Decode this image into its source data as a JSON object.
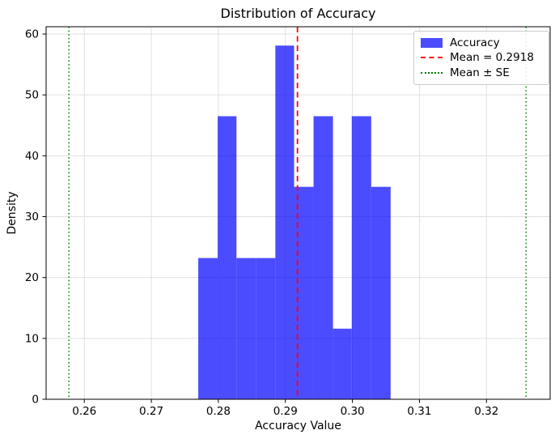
{
  "chart_data": {
    "type": "bar",
    "subtype": "histogram",
    "title": "Distribution of Accuracy",
    "xlabel": "Accuracy Value",
    "ylabel": "Density",
    "series_label": "Accuracy",
    "bin_edges": [
      0.277,
      0.2799,
      0.2827,
      0.2856,
      0.2885,
      0.2913,
      0.2942,
      0.2971,
      0.2999,
      0.3028,
      0.3057
    ],
    "densities": [
      23.2,
      46.5,
      23.2,
      23.2,
      58.1,
      34.9,
      46.5,
      11.6,
      46.5,
      34.9
    ],
    "mean": 0.2918,
    "mean_line": {
      "x": 0.2918,
      "color": "#ff0000",
      "style": "dashed",
      "label": "Mean = 0.2918"
    },
    "se_lines": {
      "x_values": [
        0.2577,
        0.3259
      ],
      "color": "#008000",
      "style": "dotted",
      "label": "Mean ± SE"
    },
    "bar_color": "#0000ff",
    "bar_alpha": 0.7,
    "xlim": [
      0.2543,
      0.3295
    ],
    "ylim": [
      0,
      61.2
    ],
    "xticks": [
      0.26,
      0.27,
      0.28,
      0.29,
      0.3,
      0.31,
      0.32
    ],
    "xtick_labels": [
      "0.26",
      "0.27",
      "0.28",
      "0.29",
      "0.30",
      "0.31",
      "0.32"
    ],
    "yticks": [
      0,
      10,
      20,
      30,
      40,
      50,
      60
    ],
    "ytick_labels": [
      "0",
      "10",
      "20",
      "30",
      "40",
      "50",
      "60"
    ],
    "grid": true,
    "grid_color": "#e0e0e0",
    "spine_color": "#000000",
    "legend_position": "upper right",
    "legend": [
      {
        "label": "Accuracy",
        "swatch": "patch",
        "color": "#0000ff"
      },
      {
        "label": "Mean = 0.2918",
        "swatch": "dashed-line",
        "color": "#ff0000"
      },
      {
        "label": "Mean ± SE",
        "swatch": "dotted-line",
        "color": "#008000"
      }
    ]
  }
}
